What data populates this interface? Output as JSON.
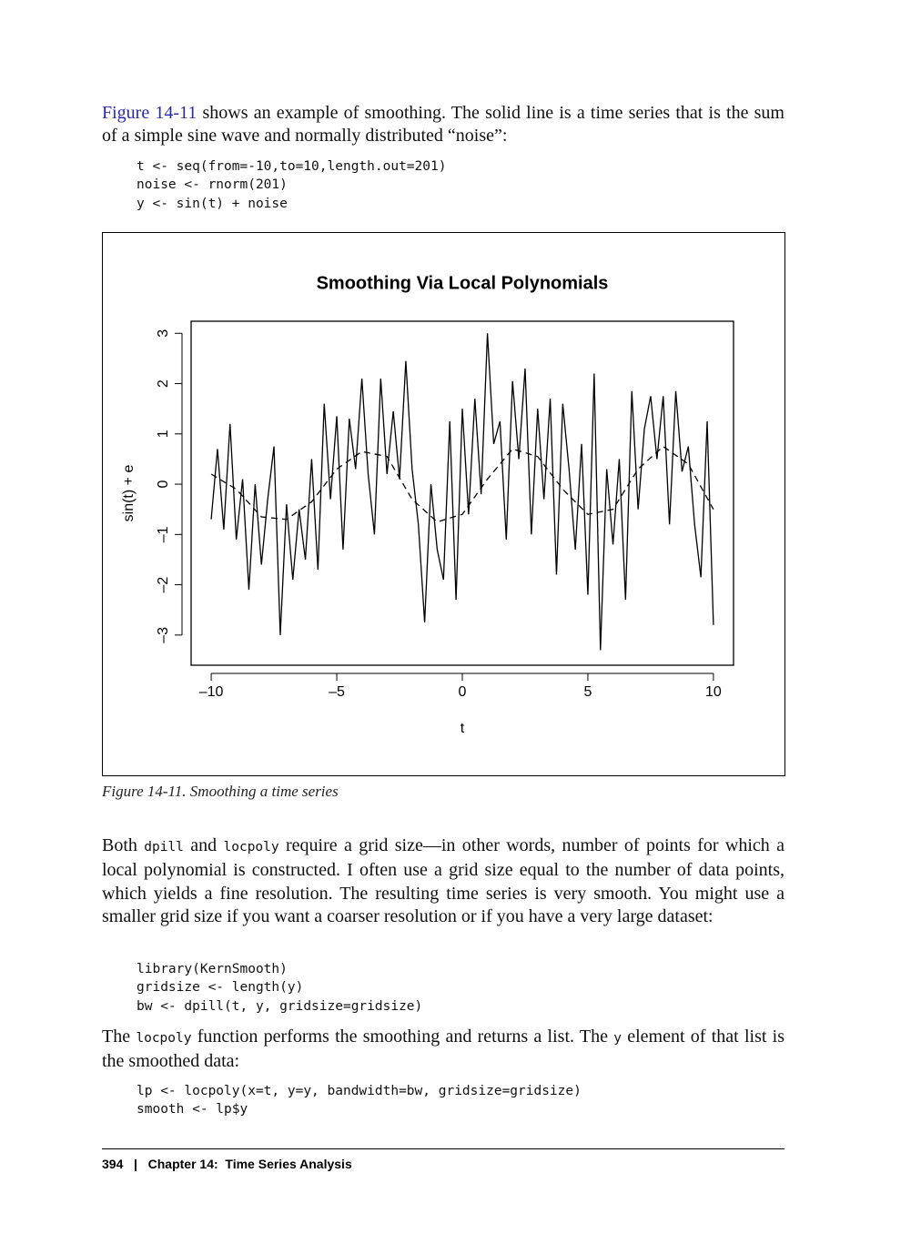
{
  "header_para": {
    "parts": [
      "Figure 14-11",
      " shows an example of smoothing. The solid line is a time series that is the sum of a simple sine wave and normally distributed “noise”:"
    ]
  },
  "code1": [
    "t <- seq(from=-10,to=10,length.out=201)",
    "noise <- rnorm(201)",
    "y <- sin(t) + noise"
  ],
  "chart_data": {
    "type": "line",
    "title": "Smoothing Via Local Polynomials",
    "x_label": "t",
    "y_label": "sin(t) + e",
    "xlim": [
      -10.8,
      10.8
    ],
    "ylim": [
      -3.6,
      3.24
    ],
    "xticks": [
      {
        "value": -10,
        "label": "–10"
      },
      {
        "value": -5,
        "label": "–5"
      },
      0,
      5,
      10
    ],
    "yticks": [
      {
        "value": -3,
        "label": "–3"
      },
      {
        "value": -2,
        "label": "–2"
      },
      {
        "value": -1,
        "label": "–1"
      },
      0,
      1,
      2,
      3
    ],
    "series": [
      {
        "color": "#000000",
        "dashed": false,
        "x": [
          -10,
          -9.75,
          -9.5,
          -9.25,
          -9,
          -8.75,
          -8.5,
          -8.25,
          -8,
          -7.75,
          -7.5,
          -7.25,
          -7,
          -6.75,
          -6.5,
          -6.25,
          -6,
          -5.75,
          -5.5,
          -5.25,
          -5,
          -4.75,
          -4.5,
          -4.25,
          -4,
          -3.75,
          -3.5,
          -3.25,
          -3,
          -2.75,
          -2.5,
          -2.25,
          -2,
          -1.75,
          -1.5,
          -1.25,
          -1,
          -0.75,
          -0.5,
          -0.25,
          0,
          0.25,
          0.5,
          0.75,
          1,
          1.25,
          1.5,
          1.75,
          2,
          2.25,
          2.5,
          2.75,
          3,
          3.25,
          3.5,
          3.75,
          4,
          4.25,
          4.5,
          4.75,
          5,
          5.25,
          5.5,
          5.75,
          6,
          6.25,
          6.5,
          6.75,
          7,
          7.25,
          7.5,
          7.75,
          8,
          8.25,
          8.5,
          8.75,
          9,
          9.25,
          9.5,
          9.75,
          10
        ],
        "values": [
          -0.7,
          0.7,
          -0.9,
          1.2,
          -1.1,
          0.1,
          -2.1,
          0,
          -1.6,
          -0.3,
          0.75,
          -3.0,
          -0.4,
          -1.9,
          -0.5,
          -1.5,
          0.5,
          -1.7,
          1.6,
          -0.3,
          1.35,
          -1.3,
          1.3,
          0.3,
          2.1,
          0.2,
          -1.0,
          2.1,
          0.2,
          1.45,
          0.1,
          2.45,
          0.3,
          -0.8,
          -2.75,
          0,
          -1.3,
          -1.9,
          1.25,
          -2.3,
          1.5,
          -0.6,
          1.7,
          -0.2,
          3.0,
          0.8,
          1.25,
          -1.1,
          2.05,
          0.5,
          2.3,
          -1.0,
          1.5,
          -0.3,
          1.7,
          -1.8,
          1.6,
          0.3,
          -1.3,
          0.8,
          -2.2,
          2.2,
          -3.3,
          0.3,
          -1.2,
          0.5,
          -2.3,
          1.85,
          -0.5,
          1.1,
          1.75,
          0.5,
          1.75,
          -0.8,
          1.85,
          0.25,
          0.75,
          -0.8,
          -1.85,
          1.25,
          -2.8
        ]
      },
      {
        "color": "#000000",
        "dashed": true,
        "x": [
          -10,
          -9,
          -8,
          -7,
          -6,
          -5,
          -4,
          -3,
          -2,
          -1,
          0,
          1,
          2,
          3,
          4,
          5,
          6,
          7,
          8,
          9,
          10
        ],
        "values": [
          0.2,
          -0.1,
          -0.65,
          -0.7,
          -0.35,
          0.3,
          0.65,
          0.55,
          -0.3,
          -0.75,
          -0.6,
          0.1,
          0.7,
          0.55,
          -0.1,
          -0.6,
          -0.5,
          0.3,
          0.75,
          0.4,
          -0.5
        ]
      }
    ]
  },
  "caption": "Figure 14-11. Smoothing a time series",
  "para2": {
    "parts": [
      "Both ",
      "dpill",
      " and ",
      "locpoly",
      " require a grid size—in other words, number of points for which a local polynomial is constructed. I often use a grid size equal to the number of data points, which yields a fine resolution. The resulting time series is very smooth. You might use a smaller grid size if you want a coarser resolution or if you have a very large dataset:"
    ]
  },
  "code2": [
    "library(KernSmooth)",
    "gridsize <- length(y)",
    "bw <- dpill(t, y, gridsize=gridsize)"
  ],
  "para3": {
    "parts": [
      "The ",
      "locpoly",
      " function performs the smoothing and returns a list. The ",
      "y",
      " element of that list is the smoothed data:"
    ]
  },
  "code3": [
    "lp <- locpoly(x=t, y=y, bandwidth=bw, gridsize=gridsize)",
    "smooth <- lp$y"
  ],
  "footer": {
    "page": "394",
    "sep": "|",
    "chapter": "Chapter 14:  Time Series Analysis"
  }
}
